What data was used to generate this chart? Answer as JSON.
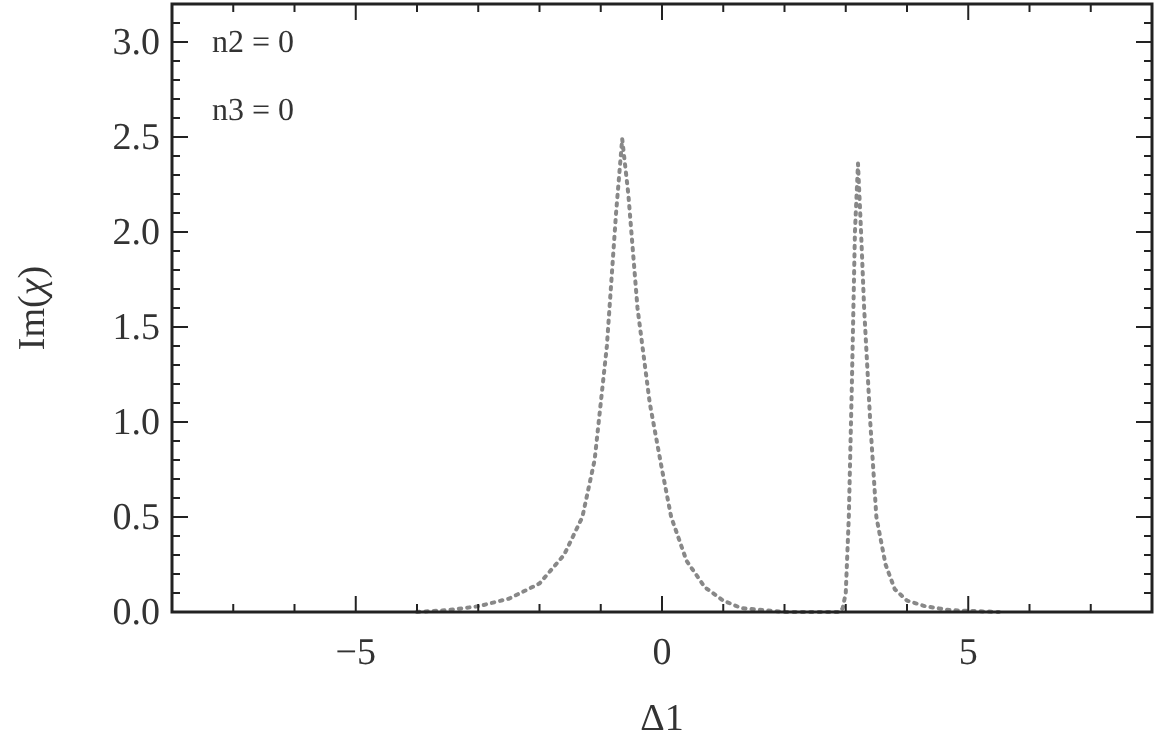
{
  "chart_data": {
    "type": "line",
    "xlabel": "Δ1",
    "ylabel": "Im(χ)",
    "annotations": [
      "n2 = 0",
      "n3 = 0"
    ],
    "xlim": [
      -8,
      8
    ],
    "xticks": [
      {
        "value": -8,
        "label": null
      },
      {
        "value": -7,
        "label": null
      },
      {
        "value": -6,
        "label": null
      },
      -5,
      {
        "value": -4,
        "label": null
      },
      {
        "value": -3,
        "label": null
      },
      {
        "value": -2,
        "label": null
      },
      {
        "value": -1,
        "label": null
      },
      0,
      {
        "value": 1,
        "label": null
      },
      {
        "value": 2,
        "label": null
      },
      {
        "value": 3,
        "label": null
      },
      {
        "value": 4,
        "label": null
      },
      5,
      {
        "value": 6,
        "label": null
      },
      {
        "value": 7,
        "label": null
      }
    ],
    "ylim": [
      0,
      3.2
    ],
    "yticks": [
      {
        "value": 0,
        "label": "0.0"
      },
      0.5,
      {
        "value": 1,
        "label": "1.0"
      },
      1.5,
      {
        "value": 2,
        "label": "2.0"
      },
      2.5,
      {
        "value": 3,
        "label": "3.0"
      }
    ],
    "line_style": "dotted",
    "marker": "none",
    "grid": false,
    "series": [
      {
        "color": "#888888",
        "x": [
          -4,
          -3.5,
          -3,
          -2.5,
          -2,
          -1.6,
          -1.3,
          -1.1,
          -0.9,
          -0.75,
          -0.65,
          -0.55,
          -0.4,
          -0.2,
          0,
          0.15,
          0.4,
          0.7,
          1,
          1.3,
          2,
          2.9,
          2.95,
          3.0,
          3.05,
          3.1,
          3.15,
          3.2,
          3.25,
          3.3,
          3.4,
          3.5,
          3.65,
          3.8,
          4.0,
          4.3,
          4.7,
          5.5
        ],
        "values": [
          0,
          0.01,
          0.03,
          0.07,
          0.15,
          0.3,
          0.5,
          0.8,
          1.4,
          2.1,
          2.49,
          2.2,
          1.6,
          1.1,
          0.75,
          0.5,
          0.27,
          0.13,
          0.06,
          0.02,
          0,
          0,
          0.02,
          0.1,
          0.5,
          1.2,
          2.0,
          2.36,
          2.0,
          1.6,
          1.0,
          0.5,
          0.25,
          0.12,
          0.06,
          0.03,
          0.01,
          0
        ]
      }
    ]
  }
}
